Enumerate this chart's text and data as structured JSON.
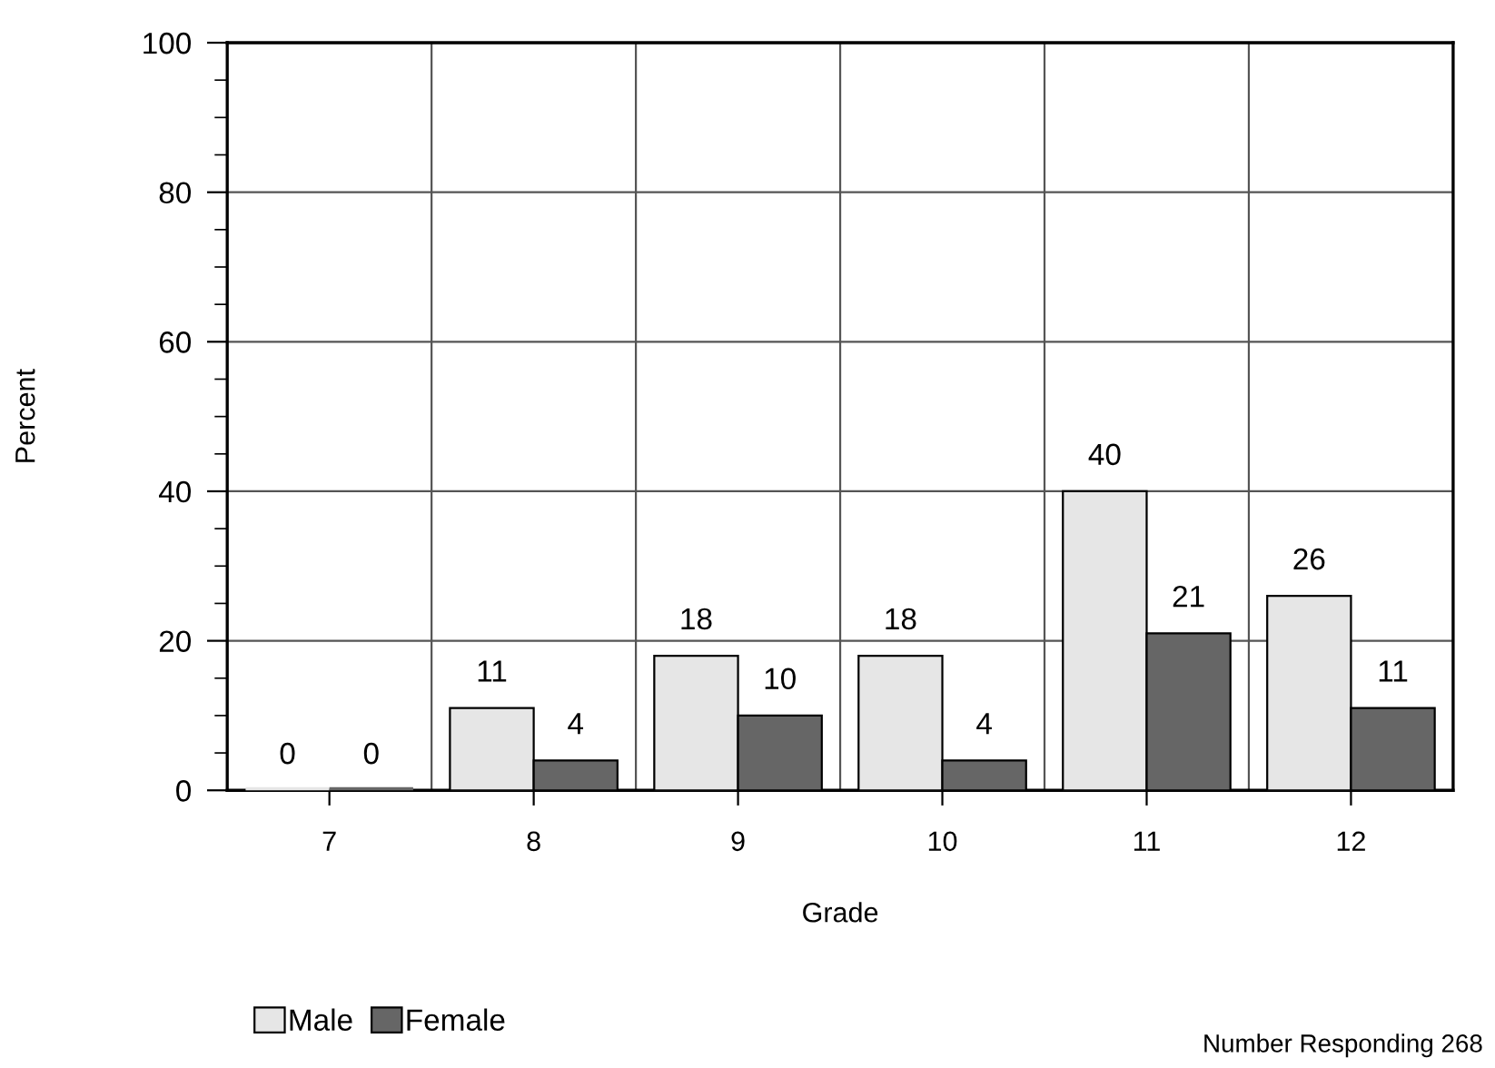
{
  "chart_data": {
    "type": "bar",
    "xlabel": "Grade",
    "ylabel": "Percent",
    "categories": [
      "7",
      "8",
      "9",
      "10",
      "11",
      "12"
    ],
    "series": [
      {
        "name": "Male",
        "color": "#e6e6e6",
        "values": [
          0,
          11,
          18,
          18,
          40,
          26
        ]
      },
      {
        "name": "Female",
        "color": "#666666",
        "values": [
          0,
          4,
          10,
          4,
          21,
          11
        ]
      }
    ],
    "ylim": [
      0,
      100
    ],
    "yticks": [
      0,
      20,
      40,
      60,
      80,
      100
    ],
    "grid": true,
    "data_labels": true,
    "legend": "bottom left",
    "annotations": [
      "Number Responding 268"
    ]
  }
}
